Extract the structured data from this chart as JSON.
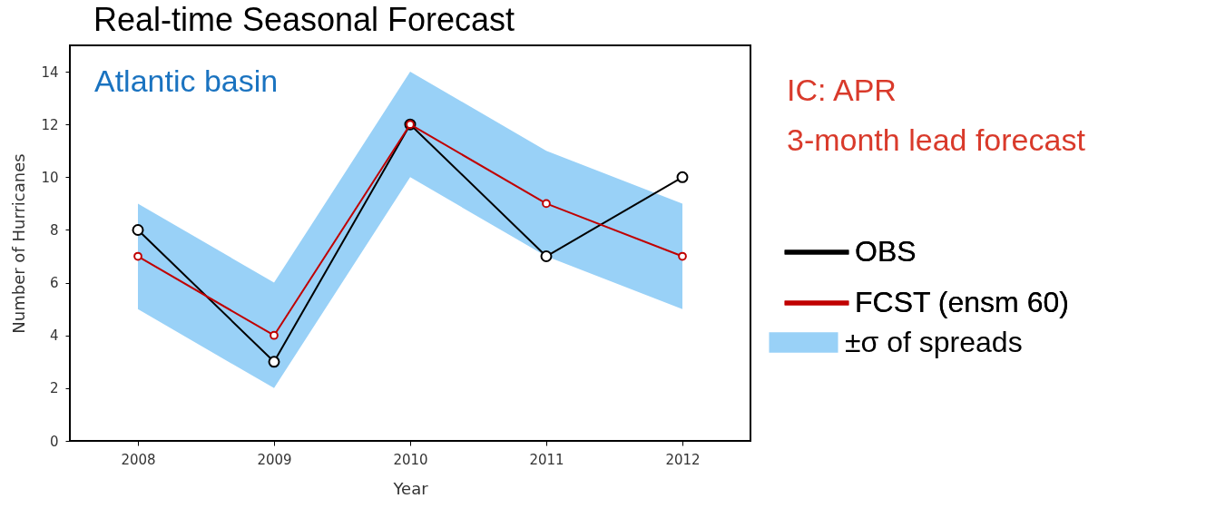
{
  "chart_data": {
    "type": "line",
    "title": "Real-time Seasonal Forecast",
    "xlabel": "Year",
    "ylabel": "Number of Hurricanes",
    "x": [
      2008,
      2009,
      2010,
      2011,
      2012
    ],
    "xlim": [
      2007.5,
      2012.5
    ],
    "xticks": [
      2008,
      2009,
      2010,
      2011,
      2012
    ],
    "ylim": [
      0,
      15
    ],
    "yticks": [
      0,
      2,
      4,
      6,
      8,
      10,
      12,
      14
    ],
    "series": [
      {
        "name": "OBS",
        "color": "#000000",
        "values": [
          8,
          3,
          12,
          7,
          10
        ]
      },
      {
        "name": "FCST (ensm 60)",
        "color": "#c00000",
        "values": [
          7,
          4,
          12,
          9,
          7
        ],
        "lower": [
          5,
          2,
          10,
          7,
          5
        ],
        "upper": [
          9,
          6,
          14,
          11,
          9
        ]
      }
    ],
    "marker": "circle",
    "grid": false,
    "legend": "right",
    "annotations": [
      "Atlantic basin",
      "IC: APR",
      "3-month lead forecast",
      "±σ of spreads"
    ]
  }
}
